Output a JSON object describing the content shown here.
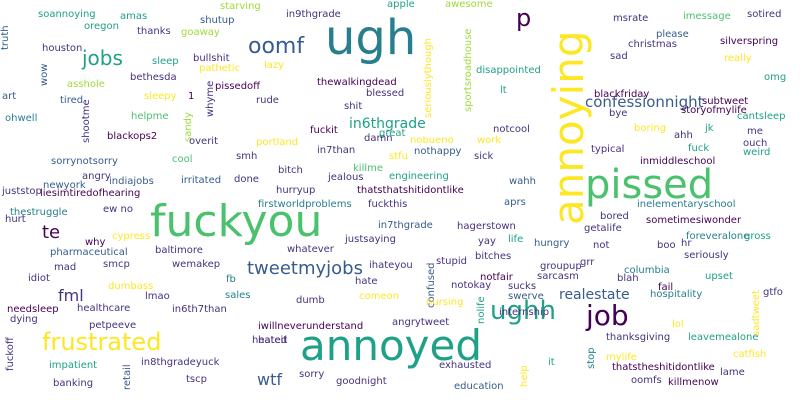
{
  "palette": {
    "darkpurple": "#440154",
    "indigo": "#46327e",
    "blue": "#365c8d",
    "steel": "#277f8e",
    "teal": "#1fa187",
    "green": "#4ac16d",
    "lime": "#a0da39",
    "yellow": "#fde725"
  },
  "words": [
    {
      "text": "ugh",
      "color": "steel"
    },
    {
      "text": "fuckyou",
      "color": "green"
    },
    {
      "text": "pissed",
      "color": "green"
    },
    {
      "text": "annoying",
      "color": "yellow"
    },
    {
      "text": "annoyed",
      "color": "teal"
    },
    {
      "text": "frustrated",
      "color": "yellow"
    },
    {
      "text": "ughh",
      "color": "teal"
    },
    {
      "text": "job",
      "color": "darkpurple"
    },
    {
      "text": "oomf",
      "color": "blue"
    },
    {
      "text": "jobs",
      "color": "teal"
    },
    {
      "text": "tweetmyjobs",
      "color": "blue"
    },
    {
      "text": "confessionnight",
      "color": "blue"
    },
    {
      "text": "realestate",
      "color": "blue"
    },
    {
      "text": "p",
      "color": "darkpurple"
    },
    {
      "text": "te",
      "color": "darkpurple"
    },
    {
      "text": "fml",
      "color": "indigo"
    },
    {
      "text": "wtf",
      "color": "blue"
    },
    {
      "text": "in6thgrade",
      "color": "teal"
    },
    {
      "text": "soannoying",
      "color": "teal"
    },
    {
      "text": "amas",
      "color": "teal"
    },
    {
      "text": "starving",
      "color": "lime"
    },
    {
      "text": "shutup",
      "color": "blue"
    },
    {
      "text": "in9thgrade",
      "color": "indigo"
    },
    {
      "text": "apple",
      "color": "teal"
    },
    {
      "text": "awesome",
      "color": "lime"
    },
    {
      "text": "msrate",
      "color": "indigo"
    },
    {
      "text": "imessage",
      "color": "green"
    },
    {
      "text": "sotired",
      "color": "indigo"
    },
    {
      "text": "truth",
      "color": "blue"
    },
    {
      "text": "oregon",
      "color": "teal"
    },
    {
      "text": "thanks",
      "color": "indigo"
    },
    {
      "text": "goaway",
      "color": "lime"
    },
    {
      "text": "seriouslythough",
      "color": "yellow"
    },
    {
      "text": "sportsroadhouse",
      "color": "lime"
    },
    {
      "text": "please",
      "color": "blue"
    },
    {
      "text": "christmas",
      "color": "indigo"
    },
    {
      "text": "silverspring",
      "color": "darkpurple"
    },
    {
      "text": "houston",
      "color": "indigo"
    },
    {
      "text": "sad",
      "color": "indigo"
    },
    {
      "text": "sleep",
      "color": "teal"
    },
    {
      "text": "bullshit",
      "color": "indigo"
    },
    {
      "text": "pathetic",
      "color": "yellow"
    },
    {
      "text": "lazy",
      "color": "yellow"
    },
    {
      "text": "disappointed",
      "color": "teal"
    },
    {
      "text": "really",
      "color": "yellow"
    },
    {
      "text": "wow",
      "color": "blue"
    },
    {
      "text": "asshole",
      "color": "lime"
    },
    {
      "text": "bethesda",
      "color": "indigo"
    },
    {
      "text": "omg",
      "color": "teal"
    },
    {
      "text": "thewalkingdead",
      "color": "darkpurple"
    },
    {
      "text": "pissedoff",
      "color": "darkpurple"
    },
    {
      "text": "lt",
      "color": "teal"
    },
    {
      "text": "blessed",
      "color": "indigo"
    },
    {
      "text": "blackfriday",
      "color": "darkpurple"
    },
    {
      "text": "art",
      "color": "blue"
    },
    {
      "text": "sleepy",
      "color": "yellow"
    },
    {
      "text": "1",
      "color": "darkpurple"
    },
    {
      "text": "whyme",
      "color": "indigo"
    },
    {
      "text": "rude",
      "color": "indigo"
    },
    {
      "text": "shit",
      "color": "indigo"
    },
    {
      "text": "subtweet",
      "color": "darkpurple"
    },
    {
      "text": "tired",
      "color": "blue"
    },
    {
      "text": "storyofmylife",
      "color": "darkpurple"
    },
    {
      "text": "ohwell",
      "color": "steel"
    },
    {
      "text": "helpme",
      "color": "green"
    },
    {
      "text": "shootme",
      "color": "indigo"
    },
    {
      "text": "sandy",
      "color": "lime"
    },
    {
      "text": "bye",
      "color": "indigo"
    },
    {
      "text": "cantsleep",
      "color": "teal"
    },
    {
      "text": "blackops2",
      "color": "darkpurple"
    },
    {
      "text": "overit",
      "color": "indigo"
    },
    {
      "text": "fuckit",
      "color": "darkpurple"
    },
    {
      "text": "great",
      "color": "teal"
    },
    {
      "text": "nobueno",
      "color": "yellow"
    },
    {
      "text": "work",
      "color": "yellow"
    },
    {
      "text": "notcool",
      "color": "indigo"
    },
    {
      "text": "boring",
      "color": "yellow"
    },
    {
      "text": "ahh",
      "color": "indigo"
    },
    {
      "text": "jk",
      "color": "teal"
    },
    {
      "text": "me",
      "color": "indigo"
    },
    {
      "text": "portland",
      "color": "yellow"
    },
    {
      "text": "in7than",
      "color": "indigo"
    },
    {
      "text": "killme",
      "color": "green"
    },
    {
      "text": "damn",
      "color": "indigo"
    },
    {
      "text": "nothappy",
      "color": "blue"
    },
    {
      "text": "sick",
      "color": "indigo"
    },
    {
      "text": "typical",
      "color": "indigo"
    },
    {
      "text": "fuck",
      "color": "teal"
    },
    {
      "text": "ouch",
      "color": "indigo"
    },
    {
      "text": "weird",
      "color": "teal"
    },
    {
      "text": "sorrynotsorry",
      "color": "blue"
    },
    {
      "text": "cool",
      "color": "green"
    },
    {
      "text": "smh",
      "color": "indigo"
    },
    {
      "text": "stfu",
      "color": "yellow"
    },
    {
      "text": "inmiddleschool",
      "color": "darkpurple"
    },
    {
      "text": "angry",
      "color": "indigo"
    },
    {
      "text": "bitch",
      "color": "indigo"
    },
    {
      "text": "jealous",
      "color": "indigo"
    },
    {
      "text": "engineering",
      "color": "teal"
    },
    {
      "text": "newyork",
      "color": "blue"
    },
    {
      "text": "indiajobs",
      "color": "blue"
    },
    {
      "text": "irritated",
      "color": "blue"
    },
    {
      "text": "done",
      "color": "indigo"
    },
    {
      "text": "thatsthatshitidontlike",
      "color": "darkpurple"
    },
    {
      "text": "wahh",
      "color": "blue"
    },
    {
      "text": "inelementaryschool",
      "color": "steel"
    },
    {
      "text": "juststop",
      "color": "indigo"
    },
    {
      "text": "liesimtiredofhearing",
      "color": "darkpurple"
    },
    {
      "text": "hurryup",
      "color": "indigo"
    },
    {
      "text": "fuckthis",
      "color": "indigo"
    },
    {
      "text": "aprs",
      "color": "blue"
    },
    {
      "text": "bored",
      "color": "indigo"
    },
    {
      "text": "thestruggle",
      "color": "steel"
    },
    {
      "text": "ew no",
      "color": "indigo"
    },
    {
      "text": "firstworldproblems",
      "color": "steel"
    },
    {
      "text": "sometimesiwonder",
      "color": "darkpurple"
    },
    {
      "text": "hurt",
      "color": "indigo"
    },
    {
      "text": "in7thgrade",
      "color": "blue"
    },
    {
      "text": "hagerstown",
      "color": "indigo"
    },
    {
      "text": "getalife",
      "color": "indigo"
    },
    {
      "text": "foreveralone",
      "color": "steel"
    },
    {
      "text": "why",
      "color": "darkpurple"
    },
    {
      "text": "cypress",
      "color": "yellow"
    },
    {
      "text": "whatever",
      "color": "indigo"
    },
    {
      "text": "justsaying",
      "color": "indigo"
    },
    {
      "text": "yay",
      "color": "indigo"
    },
    {
      "text": "life",
      "color": "teal"
    },
    {
      "text": "hungry",
      "color": "blue"
    },
    {
      "text": "not",
      "color": "indigo"
    },
    {
      "text": "boo",
      "color": "indigo"
    },
    {
      "text": "hr",
      "color": "indigo"
    },
    {
      "text": "gross",
      "color": "teal"
    },
    {
      "text": "pharmaceutical",
      "color": "blue"
    },
    {
      "text": "baltimore",
      "color": "indigo"
    },
    {
      "text": "seriously",
      "color": "indigo"
    },
    {
      "text": "idiot",
      "color": "indigo"
    },
    {
      "text": "bitches",
      "color": "indigo"
    },
    {
      "text": "smcp",
      "color": "indigo"
    },
    {
      "text": "wemakep",
      "color": "indigo"
    },
    {
      "text": "stupid",
      "color": "indigo"
    },
    {
      "text": "groupup",
      "color": "indigo"
    },
    {
      "text": "grr",
      "color": "indigo"
    },
    {
      "text": "ihateyou",
      "color": "indigo"
    },
    {
      "text": "mad",
      "color": "indigo"
    },
    {
      "text": "hate",
      "color": "indigo"
    },
    {
      "text": "notfair",
      "color": "darkpurple"
    },
    {
      "text": "columbia",
      "color": "steel"
    },
    {
      "text": "upset",
      "color": "teal"
    },
    {
      "text": "fb",
      "color": "steel"
    },
    {
      "text": "sarcasm",
      "color": "indigo"
    },
    {
      "text": "blah",
      "color": "indigo"
    },
    {
      "text": "dumbass",
      "color": "yellow"
    },
    {
      "text": "notokay",
      "color": "indigo"
    },
    {
      "text": "confused",
      "color": "blue"
    },
    {
      "text": "sucks",
      "color": "indigo"
    },
    {
      "text": "fail",
      "color": "darkpurple"
    },
    {
      "text": "lmao",
      "color": "indigo"
    },
    {
      "text": "sales",
      "color": "steel"
    },
    {
      "text": "hospitality",
      "color": "steel"
    },
    {
      "text": "swerve",
      "color": "blue"
    },
    {
      "text": "gtfo",
      "color": "indigo"
    },
    {
      "text": "comeon",
      "color": "yellow"
    },
    {
      "text": "needsleep",
      "color": "darkpurple"
    },
    {
      "text": "healthcare",
      "color": "indigo"
    },
    {
      "text": "dumb",
      "color": "indigo"
    },
    {
      "text": "nursing",
      "color": "yellow"
    },
    {
      "text": "nolife",
      "color": "teal"
    },
    {
      "text": "internship",
      "color": "indigo"
    },
    {
      "text": "dying",
      "color": "indigo"
    },
    {
      "text": "in6th7than",
      "color": "indigo"
    },
    {
      "text": "iwillneverunderstand",
      "color": "darkpurple"
    },
    {
      "text": "angrytweet",
      "color": "indigo"
    },
    {
      "text": "lol",
      "color": "yellow"
    },
    {
      "text": "sadtweet",
      "color": "yellow"
    },
    {
      "text": "petpeeve",
      "color": "indigo"
    },
    {
      "text": "hateit",
      "color": "indigo"
    },
    {
      "text": "thanksgiving",
      "color": "indigo"
    },
    {
      "text": "leavemealone",
      "color": "teal"
    },
    {
      "text": "fuckoff",
      "color": "indigo"
    },
    {
      "text": "heated",
      "color": "indigo"
    },
    {
      "text": "in8thgradeyuck",
      "color": "indigo"
    },
    {
      "text": "exhausted",
      "color": "indigo"
    },
    {
      "text": "catfish",
      "color": "yellow"
    },
    {
      "text": "impatient",
      "color": "teal"
    },
    {
      "text": "stop",
      "color": "steel"
    },
    {
      "text": "mylife",
      "color": "yellow"
    },
    {
      "text": "thatstheshitidontlike",
      "color": "darkpurple"
    },
    {
      "text": "sorry",
      "color": "indigo"
    },
    {
      "text": "it",
      "color": "teal"
    },
    {
      "text": "lame",
      "color": "indigo"
    },
    {
      "text": "banking",
      "color": "indigo"
    },
    {
      "text": "retail",
      "color": "blue"
    },
    {
      "text": "tscp",
      "color": "indigo"
    },
    {
      "text": "goodnight",
      "color": "indigo"
    },
    {
      "text": "education",
      "color": "blue"
    },
    {
      "text": "help",
      "color": "yellow"
    },
    {
      "text": "oomfs",
      "color": "indigo"
    },
    {
      "text": "killmenow",
      "color": "darkpurple"
    }
  ]
}
